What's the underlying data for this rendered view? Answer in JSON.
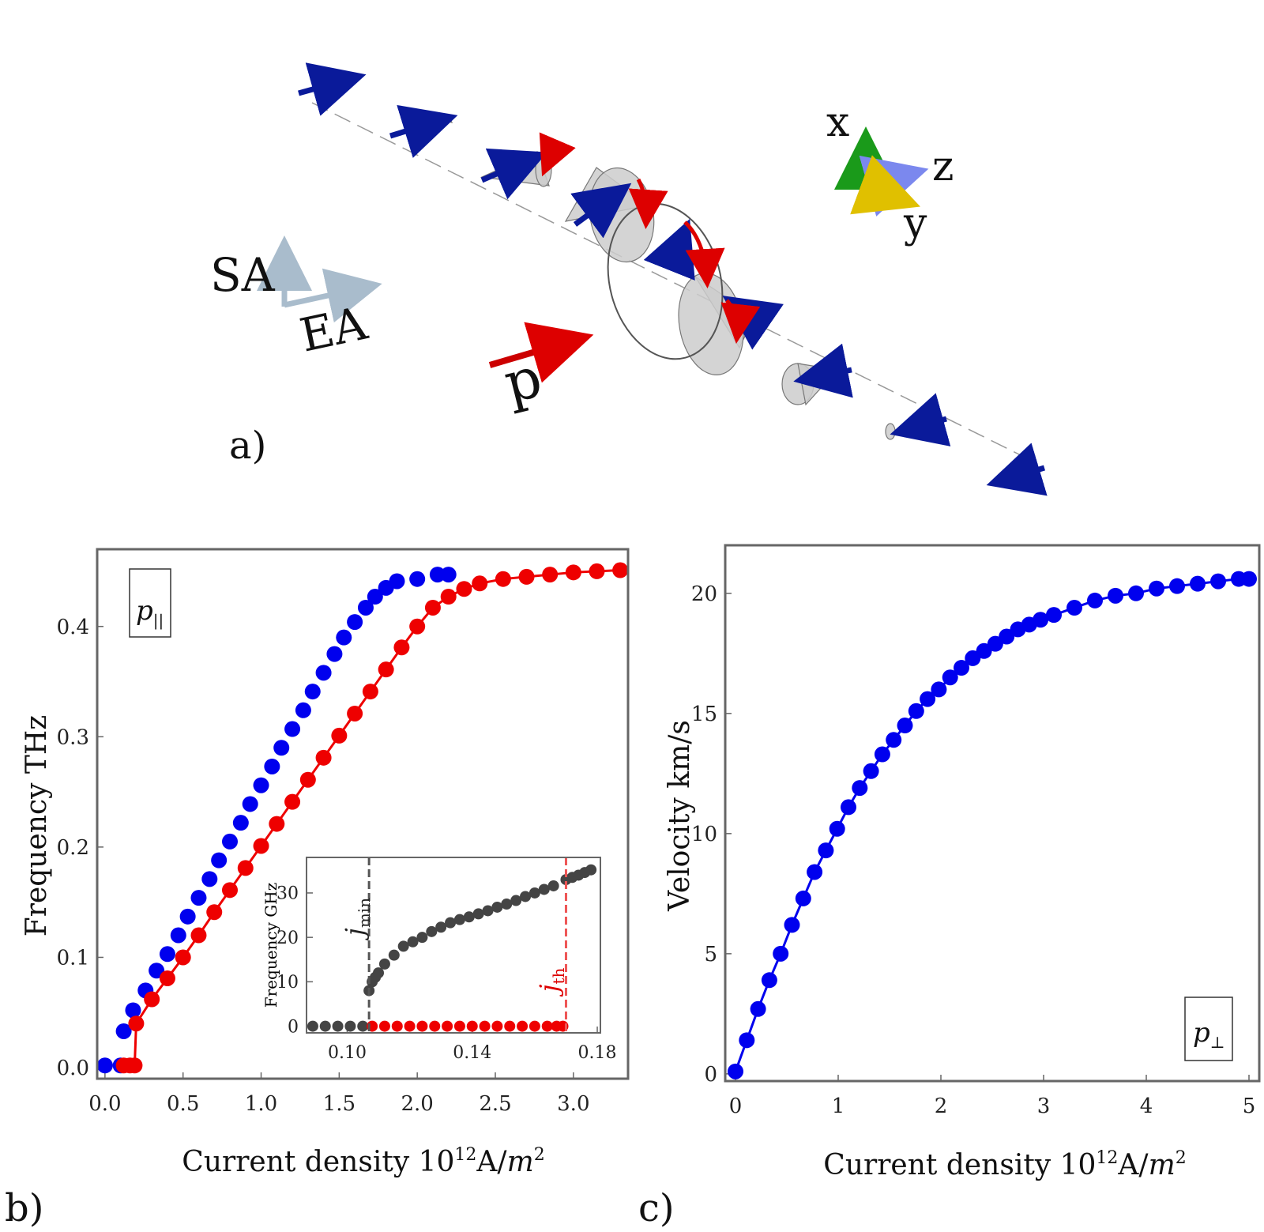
{
  "panel_a": {
    "label": "a)",
    "sa_label": "SA",
    "ea_label": "EA",
    "p_label": "p",
    "axis_x": "x",
    "axis_y": "y",
    "axis_z": "z"
  },
  "chart_data": [
    {
      "panel": "b)",
      "type": "scatter",
      "xlabel": "Current density 10^12 A/m^2",
      "ylabel": "Frequency THz",
      "annotation": "p_||",
      "xlim": [
        -0.05,
        3.35
      ],
      "ylim": [
        -0.01,
        0.47
      ],
      "xticks": [
        "0.0",
        "0.5",
        "1.0",
        "1.5",
        "2.0",
        "2.5",
        "3.0"
      ],
      "yticks": [
        "0.0",
        "0.1",
        "0.2",
        "0.3",
        "0.4"
      ],
      "grid": false,
      "series": [
        {
          "color": "#0000ee",
          "x": [
            0.0,
            0.1,
            0.12,
            0.18,
            0.26,
            0.33,
            0.4,
            0.47,
            0.53,
            0.6,
            0.67,
            0.73,
            0.8,
            0.87,
            0.93,
            1.0,
            1.07,
            1.13,
            1.2,
            1.27,
            1.33,
            1.4,
            1.47,
            1.53,
            1.6,
            1.67,
            1.73,
            1.8,
            1.87,
            2.0,
            2.13,
            2.2
          ],
          "y": [
            0.002,
            0.002,
            0.033,
            0.052,
            0.07,
            0.088,
            0.103,
            0.12,
            0.137,
            0.154,
            0.171,
            0.188,
            0.205,
            0.222,
            0.239,
            0.256,
            0.273,
            0.29,
            0.307,
            0.324,
            0.341,
            0.358,
            0.375,
            0.39,
            0.404,
            0.417,
            0.427,
            0.435,
            0.441,
            0.443,
            0.447,
            0.447
          ]
        },
        {
          "color": "#ee0000",
          "fit_line": true,
          "x": [
            0.12,
            0.16,
            0.19,
            0.2,
            0.3,
            0.4,
            0.5,
            0.6,
            0.7,
            0.8,
            0.9,
            1.0,
            1.1,
            1.2,
            1.3,
            1.4,
            1.5,
            1.6,
            1.7,
            1.8,
            1.9,
            2.0,
            2.1,
            2.2,
            2.3,
            2.4,
            2.55,
            2.7,
            2.85,
            3.0,
            3.15,
            3.3
          ],
          "y": [
            0.002,
            0.002,
            0.002,
            0.04,
            0.062,
            0.081,
            0.1,
            0.12,
            0.141,
            0.161,
            0.181,
            0.201,
            0.221,
            0.241,
            0.261,
            0.281,
            0.301,
            0.321,
            0.341,
            0.361,
            0.381,
            0.4,
            0.417,
            0.427,
            0.434,
            0.439,
            0.443,
            0.445,
            0.447,
            0.449,
            0.45,
            0.451
          ]
        }
      ],
      "inset": {
        "ylabel": "Frequency GHz",
        "xlim": [
          0.087,
          0.181
        ],
        "ylim": [
          -1.5,
          38
        ],
        "xticks": [
          "0.10",
          "0.14",
          "0.18"
        ],
        "yticks": [
          "0",
          "10",
          "20",
          "30"
        ],
        "jmin_label": "j_min",
        "jth_label": "j_th",
        "jmin_x": 0.107,
        "jth_x": 0.17,
        "series": [
          {
            "color": "#444444",
            "x": [
              0.089,
              0.093,
              0.097,
              0.101,
              0.105,
              0.107,
              0.108,
              0.109,
              0.11,
              0.112,
              0.115,
              0.118,
              0.121,
              0.124,
              0.127,
              0.13,
              0.133,
              0.136,
              0.139,
              0.142,
              0.145,
              0.148,
              0.151,
              0.154,
              0.157,
              0.16,
              0.163,
              0.166,
              0.17,
              0.172,
              0.174,
              0.176,
              0.178
            ],
            "y": [
              0,
              0,
              0,
              0,
              0,
              8,
              10,
              11,
              12,
              14,
              16,
              18,
              19,
              20,
              21.3,
              22.3,
              23.3,
              24,
              24.6,
              25.3,
              26,
              26.8,
              27.5,
              28.3,
              29.2,
              30,
              30.8,
              31.6,
              33,
              33.5,
              34,
              34.6,
              35.2
            ]
          },
          {
            "color": "#ee0000",
            "x": [
              0.108,
              0.112,
              0.116,
              0.12,
              0.124,
              0.128,
              0.132,
              0.136,
              0.14,
              0.144,
              0.148,
              0.152,
              0.156,
              0.16,
              0.164,
              0.167,
              0.169
            ],
            "y": [
              0,
              0,
              0,
              0,
              0,
              0,
              0,
              0,
              0,
              0,
              0,
              0,
              0,
              0,
              0,
              0,
              0
            ]
          }
        ]
      }
    },
    {
      "panel": "c)",
      "type": "scatter",
      "xlabel": "Current density 10^12 A/m^2",
      "ylabel": "Velocity km/s",
      "annotation": "p_⊥",
      "xlim": [
        -0.1,
        5.1
      ],
      "ylim": [
        -0.3,
        22
      ],
      "xticks": [
        "0",
        "1",
        "2",
        "3",
        "4",
        "5"
      ],
      "yticks": [
        "0",
        "5",
        "10",
        "15",
        "20"
      ],
      "grid": false,
      "series": [
        {
          "color": "#0000ee",
          "fit_line": true,
          "x": [
            0.0,
            0.11,
            0.22,
            0.33,
            0.44,
            0.55,
            0.66,
            0.77,
            0.88,
            0.99,
            1.1,
            1.21,
            1.32,
            1.43,
            1.54,
            1.65,
            1.76,
            1.87,
            1.98,
            2.09,
            2.2,
            2.31,
            2.42,
            2.53,
            2.64,
            2.75,
            2.86,
            2.97,
            3.1,
            3.3,
            3.5,
            3.7,
            3.9,
            4.1,
            4.3,
            4.5,
            4.7,
            4.9,
            5.0
          ],
          "y": [
            0.1,
            1.4,
            2.7,
            3.9,
            5.0,
            6.2,
            7.3,
            8.4,
            9.3,
            10.2,
            11.1,
            11.9,
            12.6,
            13.3,
            13.9,
            14.5,
            15.1,
            15.6,
            16.0,
            16.5,
            16.9,
            17.3,
            17.6,
            17.9,
            18.2,
            18.5,
            18.7,
            18.9,
            19.1,
            19.4,
            19.7,
            19.9,
            20.0,
            20.2,
            20.3,
            20.4,
            20.5,
            20.6,
            20.6
          ]
        }
      ]
    }
  ]
}
